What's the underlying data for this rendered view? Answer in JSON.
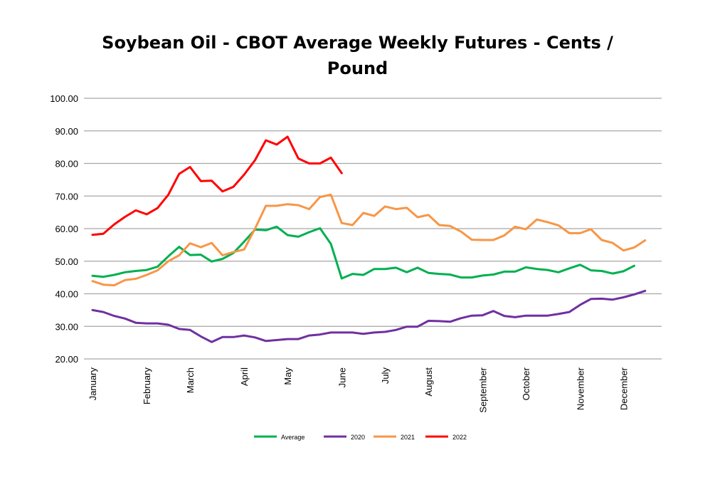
{
  "chart_data": {
    "type": "line",
    "title_lines": [
      "Soybean Oil - CBOT Average Weekly Futures - Cents /",
      "Pound"
    ],
    "xlabel": "",
    "ylabel": "",
    "ylim": [
      20,
      100
    ],
    "ytick_labels": [
      "20.00",
      "30.00",
      "40.00",
      "50.00",
      "60.00",
      "70.00",
      "80.00",
      "90.00",
      "100.00"
    ],
    "ytick_values": [
      20,
      30,
      40,
      50,
      60,
      70,
      80,
      90,
      100
    ],
    "grid": true,
    "legend_position": "bottom",
    "x_weeks": 53,
    "month_labels": [
      {
        "label": "January",
        "week": 1
      },
      {
        "label": "February",
        "week": 6
      },
      {
        "label": "March",
        "week": 10
      },
      {
        "label": "April",
        "week": 15
      },
      {
        "label": "May",
        "week": 19
      },
      {
        "label": "June",
        "week": 24
      },
      {
        "label": "July",
        "week": 28
      },
      {
        "label": "August",
        "week": 32
      },
      {
        "label": "September",
        "week": 37
      },
      {
        "label": "October",
        "week": 41
      },
      {
        "label": "November",
        "week": 46
      },
      {
        "label": "December",
        "week": 50
      }
    ],
    "series": [
      {
        "name": "Average",
        "color": "#00b050",
        "values": [
          45.5,
          45.2,
          45.8,
          46.6,
          47.0,
          47.3,
          48.3,
          51.5,
          54.4,
          51.9,
          52.0,
          49.9,
          50.7,
          52.5,
          56.0,
          59.7,
          59.5,
          60.6,
          58.0,
          57.5,
          58.9,
          60.1,
          55.3,
          44.7,
          46.1,
          45.8,
          47.6,
          47.6,
          48.0,
          46.6,
          48.0,
          46.4,
          46.1,
          45.9,
          45.0,
          45.0,
          45.6,
          45.9,
          46.8,
          46.8,
          48.1,
          47.6,
          47.3,
          46.6,
          47.8,
          48.9,
          47.2,
          47.0,
          46.2,
          46.9,
          48.6
        ]
      },
      {
        "name": "2020",
        "color": "#7030a0",
        "values": [
          35.0,
          34.4,
          33.2,
          32.4,
          31.1,
          30.9,
          30.9,
          30.5,
          29.2,
          28.9,
          26.9,
          25.2,
          26.7,
          26.7,
          27.2,
          26.6,
          25.5,
          25.8,
          26.1,
          26.1,
          27.2,
          27.5,
          28.1,
          28.1,
          28.1,
          27.7,
          28.1,
          28.3,
          28.9,
          29.9,
          29.9,
          31.7,
          31.6,
          31.4,
          32.5,
          33.3,
          33.4,
          34.7,
          33.2,
          32.8,
          33.3,
          33.3,
          33.3,
          33.8,
          34.4,
          36.6,
          38.4,
          38.5,
          38.2,
          38.9,
          39.8,
          40.9
        ]
      },
      {
        "name": "2021",
        "color": "#f79646",
        "values": [
          43.9,
          42.8,
          42.6,
          44.2,
          44.6,
          45.8,
          47.2,
          50.0,
          51.8,
          55.5,
          54.3,
          55.6,
          51.8,
          52.8,
          53.6,
          60.0,
          67.0,
          67.0,
          67.5,
          67.2,
          66.0,
          69.7,
          70.4,
          61.7,
          61.1,
          64.8,
          63.9,
          66.8,
          66.0,
          66.4,
          63.5,
          64.2,
          61.1,
          60.8,
          59.1,
          56.6,
          56.5,
          56.5,
          57.9,
          60.6,
          59.8,
          62.8,
          62.0,
          61.0,
          58.6,
          58.6,
          59.8,
          56.5,
          55.6,
          53.3,
          54.2,
          56.4
        ]
      },
      {
        "name": "2022",
        "color": "#ff0000",
        "values": [
          58.1,
          58.4,
          61.3,
          63.6,
          65.6,
          64.4,
          66.3,
          70.4,
          76.8,
          78.9,
          74.6,
          74.7,
          71.4,
          72.8,
          76.6,
          81.0,
          87.1,
          85.8,
          88.2,
          81.5,
          80.0,
          80.0,
          81.8,
          77.0
        ]
      }
    ]
  }
}
